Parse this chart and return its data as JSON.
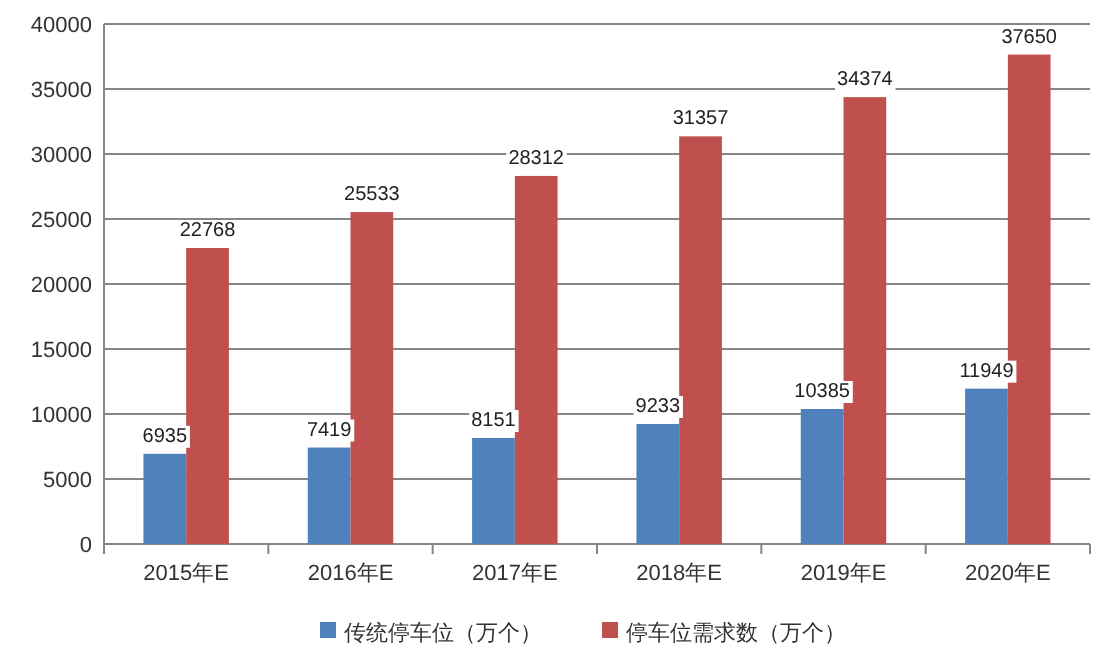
{
  "chart_data": {
    "type": "bar",
    "categories": [
      "2015年E",
      "2016年E",
      "2017年E",
      "2018年E",
      "2019年E",
      "2020年E"
    ],
    "series": [
      {
        "name": "传统停车位（万个）",
        "color": "#4f81bd",
        "values": [
          6935,
          7419,
          8151,
          9233,
          10385,
          11949
        ]
      },
      {
        "name": "停车位需求数（万个）",
        "color": "#c0504d",
        "values": [
          22768,
          25533,
          28312,
          31357,
          34374,
          37650
        ]
      }
    ],
    "ylim": [
      0,
      40000
    ],
    "yticks": [
      0,
      5000,
      10000,
      15000,
      20000,
      25000,
      30000,
      35000,
      40000
    ],
    "grid": "y",
    "legend": "bottom",
    "data_labels": true
  }
}
